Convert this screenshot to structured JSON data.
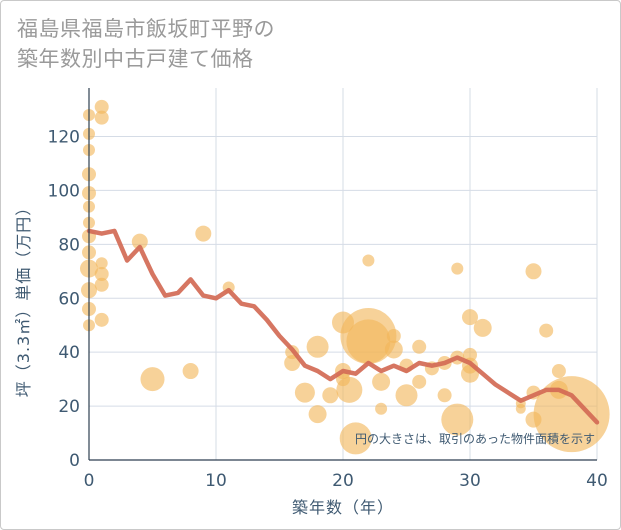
{
  "title": {
    "line1": "福島県福島市飯坂町平野の",
    "line2": "築年数別中古戸建て価格"
  },
  "chart_data": {
    "type": "scatter",
    "xlabel": "築年数（年）",
    "ylabel": "坪（3.3㎡）単価（万円）",
    "xlim": [
      0,
      40
    ],
    "ylim": [
      0,
      138
    ],
    "x_ticks": [
      0,
      10,
      20,
      30,
      40
    ],
    "y_ticks": [
      0,
      20,
      40,
      60,
      80,
      100,
      120
    ],
    "note": "円の大きさは、取引のあった物件面積を示す",
    "colors": {
      "bubble": "#f2b65a",
      "line": "#d26a55",
      "grid": "#d5dce6",
      "text": "#3f5a72"
    },
    "points": [
      {
        "x": 0,
        "y": 128,
        "s": 6
      },
      {
        "x": 0,
        "y": 121,
        "s": 6
      },
      {
        "x": 0,
        "y": 115,
        "s": 6
      },
      {
        "x": 0,
        "y": 106,
        "s": 7
      },
      {
        "x": 0,
        "y": 99,
        "s": 7
      },
      {
        "x": 0,
        "y": 94,
        "s": 6
      },
      {
        "x": 0,
        "y": 88,
        "s": 6
      },
      {
        "x": 0,
        "y": 83,
        "s": 7
      },
      {
        "x": 0,
        "y": 77,
        "s": 7
      },
      {
        "x": 0,
        "y": 71,
        "s": 9
      },
      {
        "x": 0,
        "y": 63,
        "s": 8
      },
      {
        "x": 0,
        "y": 56,
        "s": 7
      },
      {
        "x": 0,
        "y": 50,
        "s": 6
      },
      {
        "x": 1,
        "y": 131,
        "s": 7
      },
      {
        "x": 1,
        "y": 127,
        "s": 7
      },
      {
        "x": 1,
        "y": 73,
        "s": 6
      },
      {
        "x": 1,
        "y": 69,
        "s": 7
      },
      {
        "x": 1,
        "y": 65,
        "s": 7
      },
      {
        "x": 1,
        "y": 52,
        "s": 7
      },
      {
        "x": 4,
        "y": 81,
        "s": 8
      },
      {
        "x": 5,
        "y": 30,
        "s": 12
      },
      {
        "x": 8,
        "y": 33,
        "s": 8
      },
      {
        "x": 9,
        "y": 84,
        "s": 8
      },
      {
        "x": 11,
        "y": 64,
        "s": 6
      },
      {
        "x": 16,
        "y": 40,
        "s": 7
      },
      {
        "x": 16,
        "y": 36,
        "s": 8
      },
      {
        "x": 17,
        "y": 25,
        "s": 10
      },
      {
        "x": 18,
        "y": 42,
        "s": 11
      },
      {
        "x": 18,
        "y": 17,
        "s": 9
      },
      {
        "x": 19,
        "y": 24,
        "s": 8
      },
      {
        "x": 20,
        "y": 51,
        "s": 11
      },
      {
        "x": 20,
        "y": 33,
        "s": 8
      },
      {
        "x": 20,
        "y": 30,
        "s": 7
      },
      {
        "x": 20.5,
        "y": 26,
        "s": 13
      },
      {
        "x": 21,
        "y": 8,
        "s": 16
      },
      {
        "x": 22,
        "y": 74,
        "s": 6
      },
      {
        "x": 22,
        "y": 46,
        "s": 28
      },
      {
        "x": 22,
        "y": 44,
        "s": 22
      },
      {
        "x": 23,
        "y": 29,
        "s": 9
      },
      {
        "x": 23,
        "y": 19,
        "s": 6
      },
      {
        "x": 24,
        "y": 41,
        "s": 9
      },
      {
        "x": 24,
        "y": 46,
        "s": 7
      },
      {
        "x": 25,
        "y": 24,
        "s": 11
      },
      {
        "x": 25,
        "y": 35,
        "s": 7
      },
      {
        "x": 26,
        "y": 42,
        "s": 7
      },
      {
        "x": 26,
        "y": 29,
        "s": 7
      },
      {
        "x": 27,
        "y": 34,
        "s": 7
      },
      {
        "x": 28,
        "y": 24,
        "s": 7
      },
      {
        "x": 28,
        "y": 36,
        "s": 7
      },
      {
        "x": 29,
        "y": 71,
        "s": 6
      },
      {
        "x": 29,
        "y": 38,
        "s": 7
      },
      {
        "x": 29,
        "y": 15,
        "s": 16
      },
      {
        "x": 30,
        "y": 53,
        "s": 8
      },
      {
        "x": 30,
        "y": 39,
        "s": 7
      },
      {
        "x": 30,
        "y": 35,
        "s": 8
      },
      {
        "x": 30,
        "y": 32,
        "s": 9
      },
      {
        "x": 31,
        "y": 49,
        "s": 9
      },
      {
        "x": 34,
        "y": 21,
        "s": 5
      },
      {
        "x": 34,
        "y": 19,
        "s": 5
      },
      {
        "x": 35,
        "y": 70,
        "s": 8
      },
      {
        "x": 35,
        "y": 25,
        "s": 7
      },
      {
        "x": 35,
        "y": 15,
        "s": 8
      },
      {
        "x": 36,
        "y": 48,
        "s": 7
      },
      {
        "x": 37,
        "y": 33,
        "s": 7
      },
      {
        "x": 37,
        "y": 26,
        "s": 9
      },
      {
        "x": 38,
        "y": 17,
        "s": 38
      }
    ],
    "trend_line": {
      "x": [
        0,
        1,
        2,
        3,
        4,
        5,
        6,
        7,
        8,
        9,
        10,
        11,
        12,
        13,
        14,
        15,
        16,
        17,
        18,
        19,
        20,
        21,
        22,
        23,
        24,
        25,
        26,
        27,
        28,
        29,
        30,
        31,
        32,
        33,
        34,
        35,
        36,
        37,
        38,
        39,
        40
      ],
      "y": [
        85,
        84,
        85,
        74,
        79,
        69,
        61,
        62,
        67,
        61,
        60,
        63,
        58,
        57,
        52,
        46,
        41,
        35,
        33,
        30,
        33,
        32,
        36,
        33,
        35,
        33,
        36,
        35,
        36,
        38,
        36,
        32,
        28,
        25,
        22,
        24,
        26,
        26,
        24,
        19,
        14
      ]
    }
  }
}
